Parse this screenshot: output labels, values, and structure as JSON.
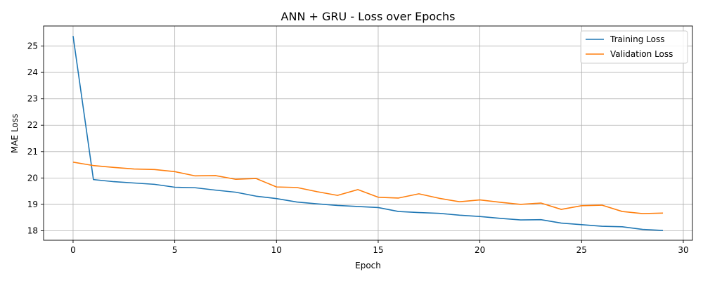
{
  "chart_data": {
    "type": "line",
    "title": "ANN + GRU - Loss over Epochs",
    "xlabel": "Epoch",
    "ylabel": "MAE Loss",
    "xlim": [
      -1.45,
      30.45
    ],
    "ylim": [
      17.64,
      25.76
    ],
    "xticks": [
      0,
      5,
      10,
      15,
      20,
      25,
      30
    ],
    "yticks": [
      18,
      19,
      20,
      21,
      22,
      23,
      24,
      25
    ],
    "grid": true,
    "legend_position": "top-right",
    "x": [
      0,
      1,
      2,
      3,
      4,
      5,
      6,
      7,
      8,
      9,
      10,
      11,
      12,
      13,
      14,
      15,
      16,
      17,
      18,
      19,
      20,
      21,
      22,
      23,
      24,
      25,
      26,
      27,
      28,
      29
    ],
    "series": [
      {
        "name": "Training Loss",
        "color": "#1f77b4",
        "values": [
          25.38,
          19.94,
          19.86,
          19.81,
          19.76,
          19.65,
          19.63,
          19.54,
          19.46,
          19.31,
          19.22,
          19.09,
          19.02,
          18.96,
          18.92,
          18.88,
          18.73,
          18.69,
          18.66,
          18.59,
          18.54,
          18.47,
          18.41,
          18.42,
          18.29,
          18.23,
          18.17,
          18.15,
          18.05,
          18.01
        ]
      },
      {
        "name": "Validation Loss",
        "color": "#ff7f0e",
        "values": [
          20.6,
          20.47,
          20.4,
          20.34,
          20.32,
          20.24,
          20.08,
          20.09,
          19.95,
          19.98,
          19.66,
          19.64,
          19.48,
          19.34,
          19.56,
          19.27,
          19.24,
          19.4,
          19.23,
          19.1,
          19.17,
          19.08,
          19.0,
          19.05,
          18.81,
          18.95,
          18.97,
          18.73,
          18.65,
          18.67
        ]
      }
    ]
  }
}
